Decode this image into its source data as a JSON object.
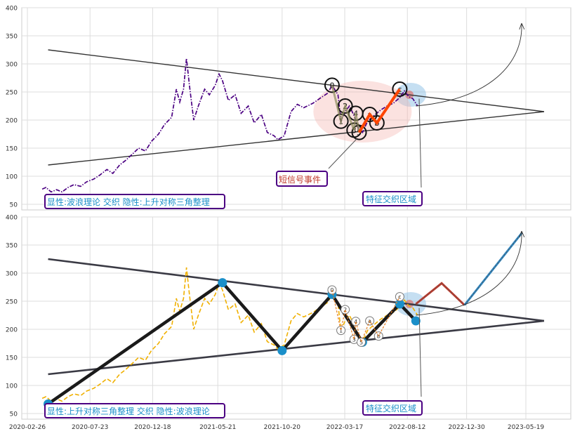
{
  "chart_data": [
    {
      "type": "line",
      "panel": "top",
      "ylim": [
        40,
        400
      ],
      "yticks": [
        50,
        100,
        150,
        200,
        250,
        300,
        350,
        400
      ],
      "grid": true,
      "colors": {
        "price": "#4b0082",
        "trend": "#333333",
        "impulse": "#ff4500",
        "event_box_border": "#4b0082",
        "event_text": "#c0392b",
        "region_text": "#1a8fc9",
        "label_text": "#1a8fc9"
      },
      "series": [
        {
          "values": [
            [
              "2020-04-01",
              77
            ],
            [
              "2020-04-10",
              80
            ],
            [
              "2020-04-22",
              72
            ],
            [
              "2020-05-05",
              76
            ],
            [
              "2020-05-18",
              72
            ],
            [
              "2020-06-01",
              80
            ],
            [
              "2020-06-15",
              85
            ],
            [
              "2020-07-01",
              82
            ],
            [
              "2020-07-15",
              90
            ],
            [
              "2020-08-01",
              95
            ],
            [
              "2020-08-15",
              102
            ],
            [
              "2020-09-01",
              112
            ],
            [
              "2020-09-15",
              105
            ],
            [
              "2020-10-01",
              120
            ],
            [
              "2020-10-15",
              128
            ],
            [
              "2020-11-01",
              140
            ],
            [
              "2020-11-15",
              150
            ],
            [
              "2020-12-01",
              145
            ],
            [
              "2020-12-15",
              162
            ],
            [
              "2021-01-01",
              175
            ],
            [
              "2021-01-15",
              192
            ],
            [
              "2021-02-01",
              205
            ],
            [
              "2021-02-12",
              255
            ],
            [
              "2021-02-20",
              232
            ],
            [
              "2021-03-01",
              255
            ],
            [
              "2021-03-08",
              310
            ],
            [
              "2021-03-15",
              262
            ],
            [
              "2021-03-25",
              200
            ],
            [
              "2021-04-05",
              225
            ],
            [
              "2021-04-20",
              255
            ],
            [
              "2021-05-01",
              245
            ],
            [
              "2021-05-15",
              262
            ],
            [
              "2021-05-24",
              282
            ],
            [
              "2021-06-01",
              270
            ],
            [
              "2021-06-15",
              235
            ],
            [
              "2021-07-01",
              245
            ],
            [
              "2021-07-15",
              212
            ],
            [
              "2021-08-01",
              225
            ],
            [
              "2021-08-15",
              195
            ],
            [
              "2021-09-01",
              210
            ],
            [
              "2021-09-15",
              178
            ],
            [
              "2021-10-01",
              172
            ],
            [
              "2021-10-10",
              165
            ],
            [
              "2021-10-25",
              172
            ],
            [
              "2021-11-10",
              215
            ],
            [
              "2021-11-25",
              228
            ],
            [
              "2021-12-10",
              222
            ],
            [
              "2022-01-01",
              230
            ],
            [
              "2022-01-20",
              240
            ],
            [
              "2022-02-05",
              248
            ],
            [
              "2022-02-15",
              262
            ],
            [
              "2022-03-01",
              245
            ],
            [
              "2022-03-08",
              198
            ],
            [
              "2022-03-18",
              215
            ],
            [
              "2022-03-28",
              225
            ],
            [
              "2022-04-08",
              208
            ],
            [
              "2022-04-18",
              185
            ],
            [
              "2022-04-28",
              178
            ],
            [
              "2022-05-10",
              198
            ],
            [
              "2022-05-25",
              208
            ],
            [
              "2022-06-10",
              218
            ],
            [
              "2022-06-25",
              225
            ],
            [
              "2022-07-10",
              230
            ],
            [
              "2022-07-25",
              240
            ],
            [
              "2022-08-05",
              252
            ],
            [
              "2022-08-15",
              242
            ],
            [
              "2022-08-25",
              238
            ],
            [
              "2022-09-05",
              225
            ]
          ]
        }
      ],
      "trendlines": [
        {
          "from": [
            "2020-04-15",
            325
          ],
          "to": [
            "2023-07-01",
            215
          ]
        },
        {
          "from": [
            "2020-04-15",
            120
          ],
          "to": [
            "2023-07-01",
            215
          ]
        }
      ],
      "wave_points": [
        {
          "label": "0",
          "x": "2022-02-15",
          "y": 262
        },
        {
          "label": "1",
          "x": "2022-03-08",
          "y": 198
        },
        {
          "label": "2",
          "x": "2022-03-18",
          "y": 225
        },
        {
          "label": "3",
          "x": "2022-04-08",
          "y": 182
        },
        {
          "label": "4",
          "x": "2022-04-12",
          "y": 212
        },
        {
          "label": "5",
          "x": "2022-04-20",
          "y": 178
        },
        {
          "label": "a",
          "x": "2022-05-15",
          "y": 210
        },
        {
          "label": "b",
          "x": "2022-06-01",
          "y": 195
        },
        {
          "label": "c",
          "x": "2022-07-25",
          "y": 255
        }
      ],
      "annotations": [
        {
          "text": "短信号事件",
          "role": "event"
        },
        {
          "text": "特征交织区域",
          "role": "region"
        },
        {
          "text": "显性:波浪理论 交织 隐性:上升对称三角整理",
          "role": "label"
        }
      ]
    },
    {
      "type": "line",
      "panel": "bottom",
      "ylim": [
        40,
        400
      ],
      "yticks": [
        50,
        100,
        150,
        200,
        250,
        300,
        350,
        400
      ],
      "xticks": [
        "2020-02-26",
        "2020-07-23",
        "2020-12-18",
        "2021-05-21",
        "2021-10-20",
        "2022-03-17",
        "2022-08-12",
        "2022-12-30",
        "2023-05-19"
      ],
      "grid": true,
      "colors": {
        "price": "#f0b000",
        "trend": "#3a3a44",
        "zigzag": "#1a1a1a",
        "node": "#1a8fc9",
        "forecast_red": "#c0392b",
        "forecast_blue": "#2e86c1",
        "label_text": "#1a8fc9"
      },
      "series": [
        {
          "values": [
            [
              "2020-04-01",
              77
            ],
            [
              "2020-04-10",
              80
            ],
            [
              "2020-04-22",
              72
            ],
            [
              "2020-05-05",
              76
            ],
            [
              "2020-05-18",
              72
            ],
            [
              "2020-06-01",
              80
            ],
            [
              "2020-06-15",
              85
            ],
            [
              "2020-07-01",
              82
            ],
            [
              "2020-07-15",
              90
            ],
            [
              "2020-08-01",
              95
            ],
            [
              "2020-08-15",
              102
            ],
            [
              "2020-09-01",
              112
            ],
            [
              "2020-09-15",
              105
            ],
            [
              "2020-10-01",
              120
            ],
            [
              "2020-10-15",
              128
            ],
            [
              "2020-11-01",
              140
            ],
            [
              "2020-11-15",
              150
            ],
            [
              "2020-12-01",
              145
            ],
            [
              "2020-12-15",
              162
            ],
            [
              "2021-01-01",
              175
            ],
            [
              "2021-01-15",
              192
            ],
            [
              "2021-02-01",
              205
            ],
            [
              "2021-02-12",
              255
            ],
            [
              "2021-02-20",
              232
            ],
            [
              "2021-03-01",
              255
            ],
            [
              "2021-03-08",
              310
            ],
            [
              "2021-03-15",
              262
            ],
            [
              "2021-03-25",
              200
            ],
            [
              "2021-04-05",
              225
            ],
            [
              "2021-04-20",
              255
            ],
            [
              "2021-05-01",
              245
            ],
            [
              "2021-05-15",
              262
            ],
            [
              "2021-05-24",
              282
            ],
            [
              "2021-06-01",
              270
            ],
            [
              "2021-06-15",
              235
            ],
            [
              "2021-07-01",
              245
            ],
            [
              "2021-07-15",
              212
            ],
            [
              "2021-08-01",
              225
            ],
            [
              "2021-08-15",
              195
            ],
            [
              "2021-09-01",
              210
            ],
            [
              "2021-09-15",
              178
            ],
            [
              "2021-10-01",
              172
            ],
            [
              "2021-10-10",
              165
            ],
            [
              "2021-10-25",
              172
            ],
            [
              "2021-11-10",
              215
            ],
            [
              "2021-11-25",
              228
            ],
            [
              "2021-12-10",
              222
            ],
            [
              "2022-01-01",
              230
            ],
            [
              "2022-01-20",
              240
            ],
            [
              "2022-02-05",
              248
            ],
            [
              "2022-02-15",
              262
            ],
            [
              "2022-03-01",
              245
            ],
            [
              "2022-03-08",
              198
            ],
            [
              "2022-03-18",
              215
            ],
            [
              "2022-03-28",
              225
            ],
            [
              "2022-04-08",
              208
            ],
            [
              "2022-04-18",
              185
            ],
            [
              "2022-04-28",
              178
            ],
            [
              "2022-05-10",
              198
            ],
            [
              "2022-05-25",
              208
            ],
            [
              "2022-06-10",
              218
            ],
            [
              "2022-06-25",
              225
            ],
            [
              "2022-07-10",
              230
            ],
            [
              "2022-07-25",
              240
            ],
            [
              "2022-08-05",
              252
            ],
            [
              "2022-08-15",
              242
            ],
            [
              "2022-08-25",
              238
            ],
            [
              "2022-09-05",
              225
            ]
          ]
        }
      ],
      "trendlines": [
        {
          "from": [
            "2020-04-15",
            325
          ],
          "to": [
            "2023-07-01",
            215
          ]
        },
        {
          "from": [
            "2020-04-15",
            120
          ],
          "to": [
            "2023-07-01",
            215
          ]
        }
      ],
      "zigzag": [
        [
          "2020-04-15",
          67
        ],
        [
          "2021-06-01",
          283
        ],
        [
          "2021-10-20",
          162
        ],
        [
          "2022-02-15",
          262
        ],
        [
          "2022-04-28",
          177
        ],
        [
          "2022-07-25",
          245
        ],
        [
          "2022-09-01",
          215
        ]
      ],
      "forecast": [
        {
          "color": "red",
          "points": [
            [
              "2022-09-01",
              245
            ],
            [
              "2022-11-01",
              282
            ],
            [
              "2022-12-25",
              243
            ]
          ]
        },
        {
          "color": "blue",
          "points": [
            [
              "2022-12-25",
              243
            ],
            [
              "2023-05-10",
              372
            ]
          ]
        }
      ],
      "wave_points": [
        {
          "label": "0",
          "x": "2022-02-15",
          "y": 270
        },
        {
          "label": "1",
          "x": "2022-03-08",
          "y": 198
        },
        {
          "label": "2",
          "x": "2022-03-18",
          "y": 235
        },
        {
          "label": "3",
          "x": "2022-04-08",
          "y": 182
        },
        {
          "label": "4",
          "x": "2022-04-12",
          "y": 214
        },
        {
          "label": "5",
          "x": "2022-04-25",
          "y": 177
        },
        {
          "label": "a",
          "x": "2022-05-15",
          "y": 215
        },
        {
          "label": "b",
          "x": "2022-06-05",
          "y": 188
        },
        {
          "label": "c",
          "x": "2022-07-25",
          "y": 258
        }
      ],
      "annotations": [
        {
          "text": "特征交织区域",
          "role": "region"
        },
        {
          "text": "显性:上升对称三角整理 交织 隐性:波浪理论",
          "role": "label"
        }
      ]
    }
  ]
}
